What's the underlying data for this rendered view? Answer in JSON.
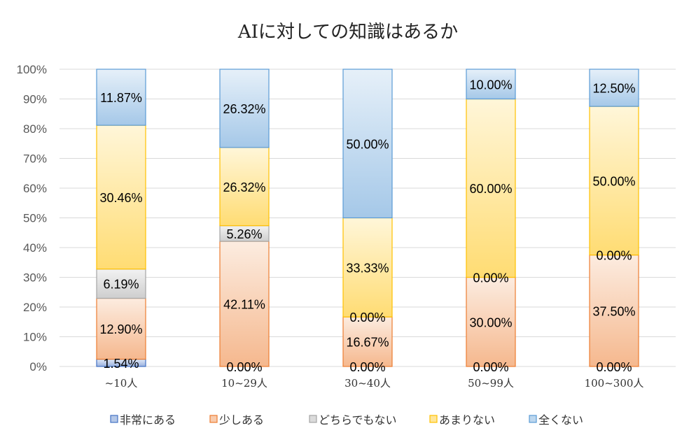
{
  "chart_data": {
    "type": "bar",
    "stacked": true,
    "normalized_percent": true,
    "title": "AIに対しての知識はあるか",
    "xlabel": "",
    "ylabel": "",
    "ylim": [
      0,
      100
    ],
    "yticks": [
      "0%",
      "10%",
      "20%",
      "30%",
      "40%",
      "50%",
      "60%",
      "70%",
      "80%",
      "90%",
      "100%"
    ],
    "grid": true,
    "legend_position": "bottom",
    "categories": [
      "~10人",
      "10~29人",
      "30~40人",
      "50~99人",
      "100~300人"
    ],
    "series": [
      {
        "name": "非常にある",
        "color": "#4472C4",
        "values": [
          1.54,
          0.0,
          0.0,
          0.0,
          0.0
        ]
      },
      {
        "name": "少しある",
        "color": "#ED7D31",
        "values": [
          12.9,
          42.11,
          16.67,
          30.0,
          37.5
        ]
      },
      {
        "name": "どちらでもない",
        "color": "#A5A5A5",
        "values": [
          6.19,
          5.26,
          0.0,
          0.0,
          0.0
        ]
      },
      {
        "name": "あまりない",
        "color": "#FFC000",
        "values": [
          30.46,
          26.32,
          33.33,
          60.0,
          50.0
        ]
      },
      {
        "name": "全くない",
        "color": "#5B9BD5",
        "values": [
          11.87,
          26.32,
          50.0,
          10.0,
          12.5
        ]
      }
    ]
  }
}
